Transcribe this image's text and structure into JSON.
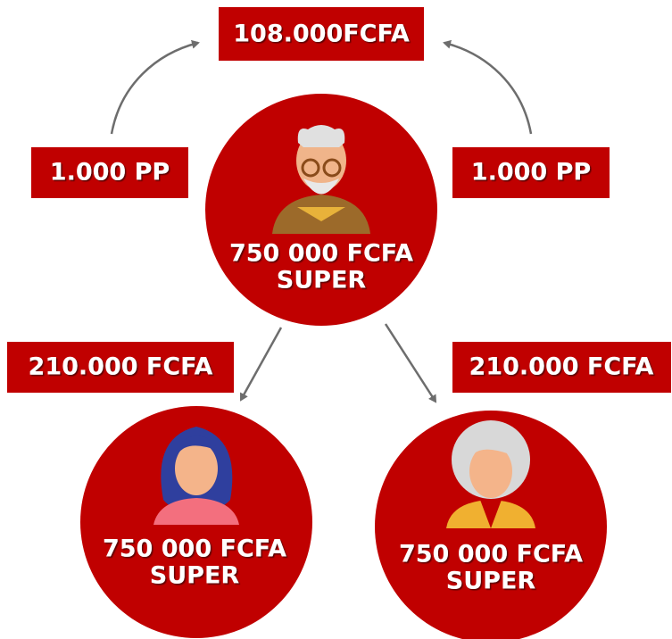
{
  "top_box": "108.000FCFA",
  "side_boxes": [
    "1.000 PP",
    "1.000 PP"
  ],
  "lower_boxes": [
    "210.000 FCFA",
    "210.000 FCFA"
  ],
  "nodes": [
    {
      "amount": "750 000 FCFA",
      "rank": "SUPER"
    },
    {
      "amount": "750 000 FCFA",
      "rank": "SUPER"
    },
    {
      "amount": "750 000 FCFA",
      "rank": "SUPER"
    }
  ]
}
